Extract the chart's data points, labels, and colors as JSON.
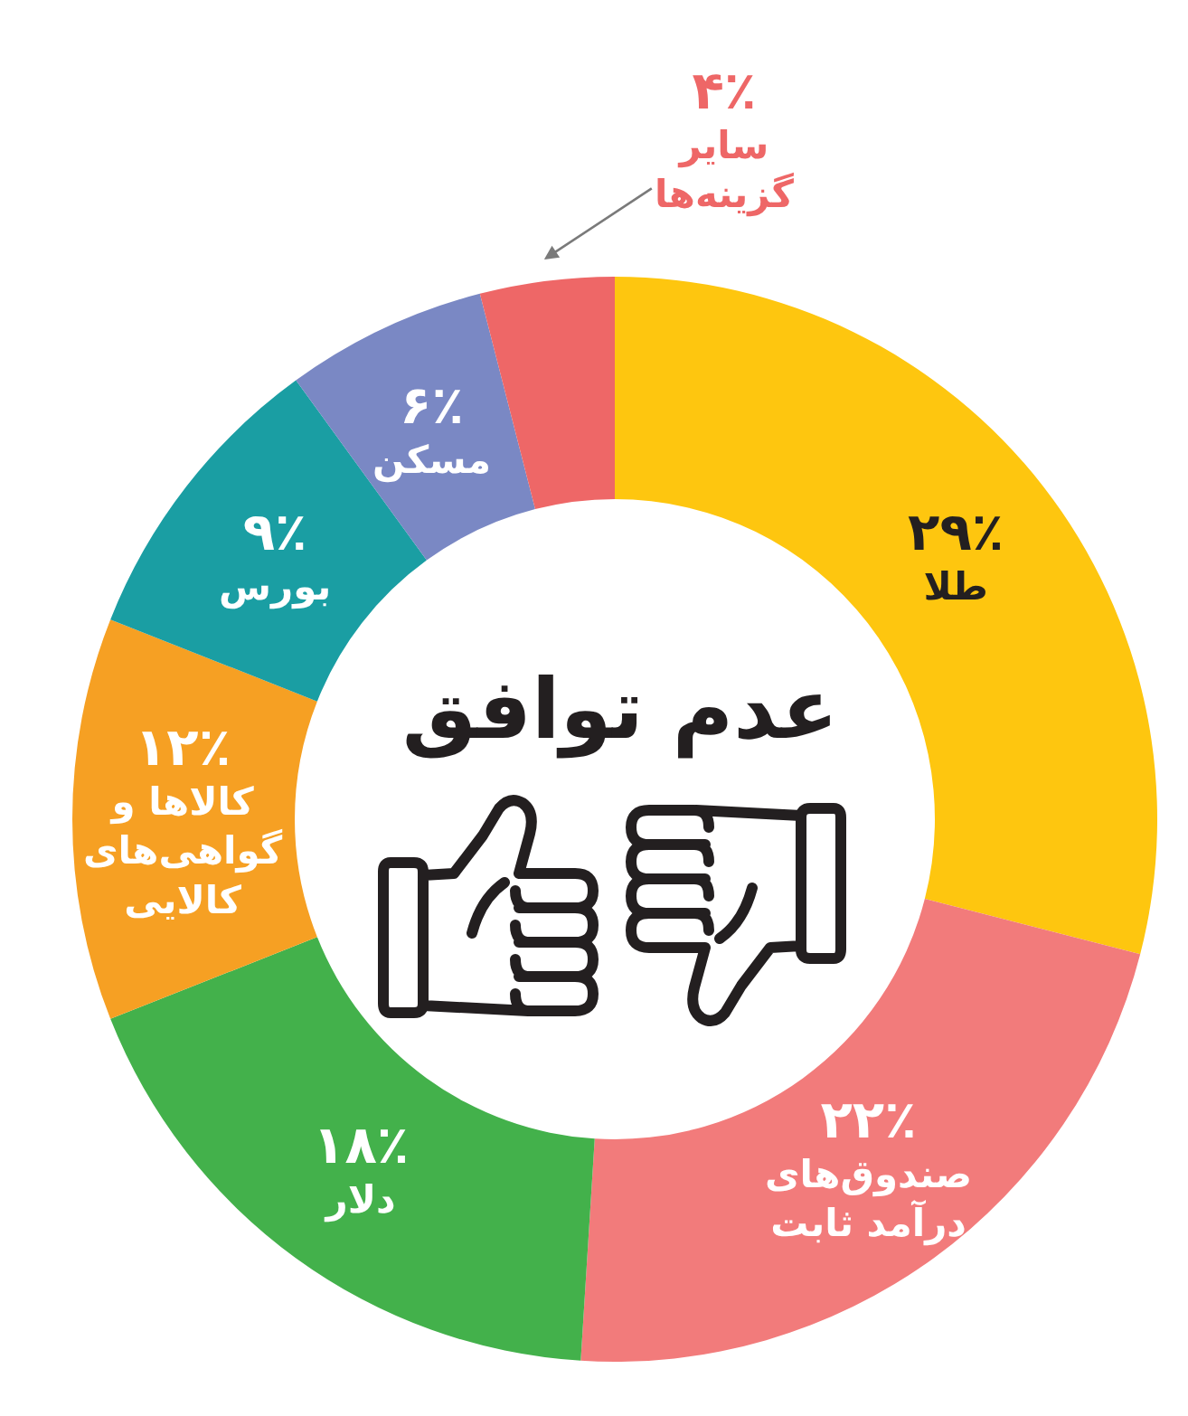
{
  "chart_data": {
    "type": "donut",
    "title": "عدم توافق",
    "categories": [
      "طلا",
      "صندوق‌های درآمد ثابت",
      "دلار",
      "کالاها و گواهی‌های کالایی",
      "بورس",
      "مسکن",
      "سایر گزینه‌ها"
    ],
    "values": [
      29,
      22,
      18,
      12,
      9,
      6,
      4
    ],
    "value_labels": [
      "۲۹٪",
      "۲۲٪",
      "۱۸٪",
      "۱۲٪",
      "۹٪",
      "۶٪",
      "۴٪"
    ],
    "colors": [
      "#fec60f",
      "#f27b7b",
      "#43b14b",
      "#f6a023",
      "#1a9ea3",
      "#7a88c4",
      "#ee6767"
    ]
  }
}
